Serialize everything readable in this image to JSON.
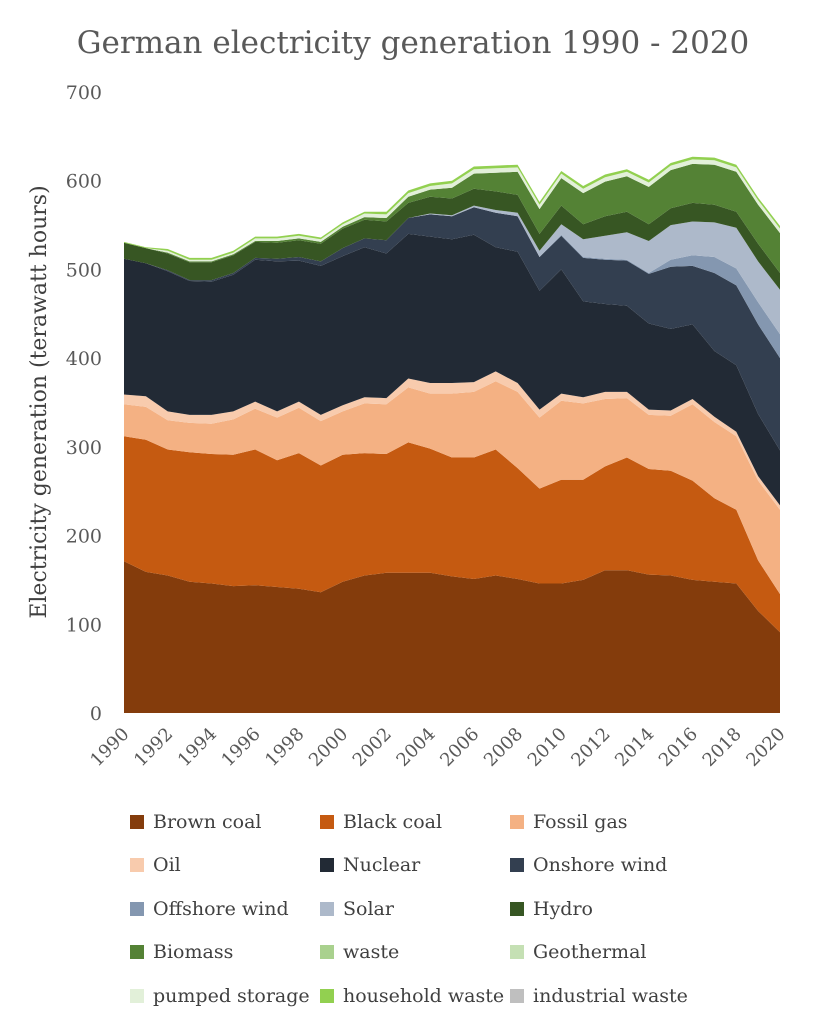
{
  "chart_data": {
    "type": "area",
    "stacked": true,
    "title": "German electricity generation 1990 - 2020",
    "xlabel": "",
    "ylabel": "Electricity generation (terawatt hours)",
    "ylim": [
      0,
      700
    ],
    "yticks": [
      "0",
      "100",
      "200",
      "300",
      "400",
      "500",
      "600",
      "700"
    ],
    "xticks": [
      "1990",
      "1992",
      "1994",
      "1996",
      "1998",
      "2000",
      "2002",
      "2004",
      "2006",
      "2008",
      "2010",
      "2012",
      "2014",
      "2016",
      "2018",
      "2020"
    ],
    "grid": false,
    "legend_position": "bottom",
    "x": [
      1990,
      1991,
      1992,
      1993,
      1994,
      1995,
      1996,
      1997,
      1998,
      1999,
      2000,
      2001,
      2002,
      2003,
      2004,
      2005,
      2006,
      2007,
      2008,
      2009,
      2010,
      2011,
      2012,
      2013,
      2014,
      2015,
      2016,
      2017,
      2018,
      2019,
      2020
    ],
    "series": [
      {
        "name": "Brown coal",
        "color": "#843c0c",
        "values": [
          171,
          159,
          155,
          148,
          146,
          143,
          144,
          142,
          140,
          136,
          148,
          155,
          158,
          158,
          158,
          154,
          151,
          155,
          151,
          146,
          146,
          150,
          161,
          161,
          156,
          155,
          150,
          148,
          146,
          115,
          91
        ]
      },
      {
        "name": "Black coal",
        "color": "#c55a11",
        "values": [
          141,
          149,
          142,
          146,
          146,
          148,
          153,
          143,
          153,
          143,
          143,
          138,
          134,
          147,
          140,
          134,
          137,
          142,
          125,
          107,
          117,
          113,
          117,
          127,
          119,
          118,
          112,
          94,
          83,
          57,
          43
        ]
      },
      {
        "name": "Fossil gas",
        "color": "#f4b183",
        "values": [
          36,
          37,
          33,
          33,
          34,
          40,
          46,
          48,
          51,
          50,
          49,
          56,
          56,
          62,
          62,
          72,
          74,
          77,
          86,
          80,
          89,
          86,
          76,
          67,
          61,
          62,
          86,
          86,
          83,
          90,
          95
        ]
      },
      {
        "name": "Oil",
        "color": "#f8cbad",
        "values": [
          11,
          12,
          10,
          9,
          10,
          9,
          8,
          7,
          7,
          7,
          7,
          7,
          7,
          10,
          12,
          12,
          11,
          11,
          10,
          9,
          8,
          7,
          8,
          7,
          6,
          6,
          6,
          6,
          5,
          5,
          5
        ]
      },
      {
        "name": "Nuclear",
        "color": "#222a35",
        "values": [
          153,
          150,
          158,
          151,
          150,
          154,
          160,
          169,
          159,
          168,
          168,
          169,
          163,
          163,
          165,
          162,
          166,
          140,
          148,
          134,
          140,
          108,
          99,
          97,
          97,
          92,
          84,
          74,
          75,
          70,
          62
        ]
      },
      {
        "name": "Onshore wind",
        "color": "#333f50",
        "values": [
          0,
          0,
          1,
          1,
          2,
          2,
          2,
          3,
          4,
          5,
          9,
          10,
          15,
          18,
          25,
          26,
          31,
          39,
          40,
          38,
          38,
          49,
          50,
          51,
          56,
          70,
          66,
          88,
          90,
          101,
          104
        ]
      },
      {
        "name": "Offshore wind",
        "color": "#8497b0",
        "values": [
          0,
          0,
          0,
          0,
          0,
          0,
          0,
          0,
          0,
          0,
          0,
          0,
          0,
          0,
          0,
          0,
          0,
          0,
          0,
          0,
          1,
          1,
          1,
          1,
          1,
          8,
          12,
          18,
          19,
          25,
          27
        ]
      },
      {
        "name": "Solar",
        "color": "#adb9ca",
        "values": [
          0,
          0,
          0,
          0,
          0,
          0,
          0,
          0,
          0,
          0,
          0,
          0,
          0,
          0,
          1,
          1,
          2,
          3,
          4,
          7,
          12,
          20,
          26,
          31,
          36,
          39,
          38,
          39,
          46,
          46,
          50
        ]
      },
      {
        "name": "Hydro",
        "color": "#375623",
        "values": [
          18,
          17,
          19,
          20,
          20,
          20,
          18,
          18,
          19,
          20,
          22,
          21,
          21,
          17,
          19,
          19,
          19,
          21,
          20,
          19,
          21,
          17,
          22,
          23,
          19,
          19,
          21,
          20,
          18,
          20,
          19
        ]
      },
      {
        "name": "Biomass",
        "color": "#548235",
        "values": [
          0,
          0,
          1,
          1,
          1,
          1,
          1,
          2,
          2,
          2,
          2,
          3,
          4,
          7,
          8,
          12,
          17,
          21,
          26,
          28,
          31,
          35,
          39,
          40,
          42,
          43,
          44,
          45,
          45,
          44,
          45
        ]
      },
      {
        "name": "waste",
        "color": "#a9d18e",
        "values": [
          0,
          0,
          0,
          0,
          0,
          0,
          0,
          0,
          0,
          0,
          0,
          0,
          0,
          0,
          0,
          0,
          0,
          0,
          0,
          0,
          0,
          0,
          0,
          0,
          0,
          0,
          0,
          0,
          0,
          0,
          0
        ]
      },
      {
        "name": "Geothermal",
        "color": "#c5e0b4",
        "values": [
          0,
          0,
          0,
          0,
          0,
          0,
          0,
          0,
          0,
          0,
          0,
          0,
          0,
          0,
          0,
          0,
          0,
          0,
          0,
          0,
          0,
          0,
          0,
          0,
          0,
          0,
          0,
          0,
          0,
          0,
          0
        ]
      },
      {
        "name": "pumped storage",
        "color": "#e2f0d9",
        "values": [
          0,
          0,
          2,
          2,
          2,
          2,
          3,
          3,
          3,
          3,
          3,
          4,
          4,
          4,
          4,
          5,
          5,
          5,
          5,
          5,
          5,
          5,
          5,
          5,
          5,
          5,
          5,
          5,
          5,
          5,
          5
        ]
      },
      {
        "name": "household waste",
        "color": "#92d050",
        "values": [
          1,
          1,
          2,
          2,
          2,
          2,
          2,
          2,
          2,
          2,
          2,
          2,
          3,
          3,
          3,
          3,
          3,
          3,
          3,
          3,
          3,
          3,
          3,
          3,
          3,
          3,
          3,
          3,
          3,
          3,
          3
        ]
      },
      {
        "name": "industrial waste",
        "color": "#bfbfbf",
        "values": [
          0,
          0,
          0,
          0,
          0,
          0,
          0,
          0,
          0,
          0,
          0,
          0,
          0,
          0,
          0,
          0,
          0,
          0,
          0,
          0,
          0,
          0,
          0,
          0,
          0,
          0,
          0,
          0,
          0,
          0,
          0
        ]
      }
    ]
  }
}
